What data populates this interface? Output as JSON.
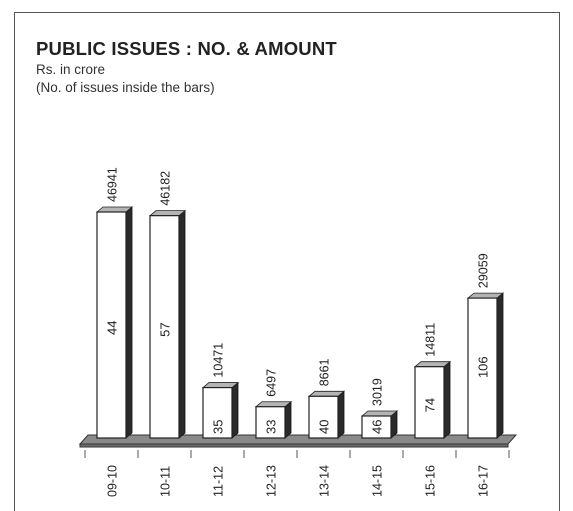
{
  "chart_data": {
    "type": "bar",
    "title": "PUBLIC ISSUES : NO. & AMOUNT",
    "subtitle": "Rs. in crore",
    "note": "(No. of issues inside the bars)",
    "categories": [
      "09-10",
      "10-11",
      "11-12",
      "12-13",
      "13-14",
      "14-15",
      "15-16",
      "16-17"
    ],
    "series": [
      {
        "values": [
          46941,
          46182,
          10471,
          6497,
          8661,
          3019,
          14811,
          29059
        ]
      },
      {
        "values": [
          44,
          57,
          35,
          33,
          40,
          46,
          74,
          106
        ]
      }
    ],
    "ylim": [
      0,
      46941
    ],
    "grid": false,
    "colors": {
      "bar": "#ffffff",
      "bar_top": "#b4b4b4",
      "bar_side": "#2a2a2a",
      "floor": "#6e6e6e",
      "floor_top": "#8a8a8a"
    }
  }
}
